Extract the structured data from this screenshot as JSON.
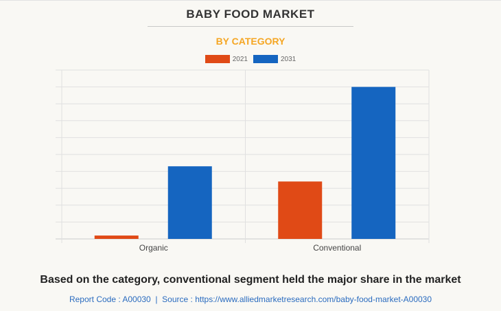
{
  "header": {
    "title": "BABY FOOD MARKET",
    "subtitle": "BY CATEGORY"
  },
  "chart_data": {
    "type": "bar",
    "categories": [
      "Organic",
      "Conventional"
    ],
    "series": [
      {
        "name": "2021",
        "color": "#e04a16",
        "values": [
          0.2,
          3.4
        ]
      },
      {
        "name": "2031",
        "color": "#1565c0",
        "values": [
          4.3,
          9.0
        ]
      }
    ],
    "ylim": [
      0,
      10
    ],
    "y_ticks_labeled": false,
    "grid": true,
    "legend": "top"
  },
  "footer": {
    "caption": "Based on the category, conventional segment held the major share in the market",
    "source": "Report Code : A00030  |  Source : https://www.alliedmarketresearch.com/baby-food-market-A00030"
  }
}
